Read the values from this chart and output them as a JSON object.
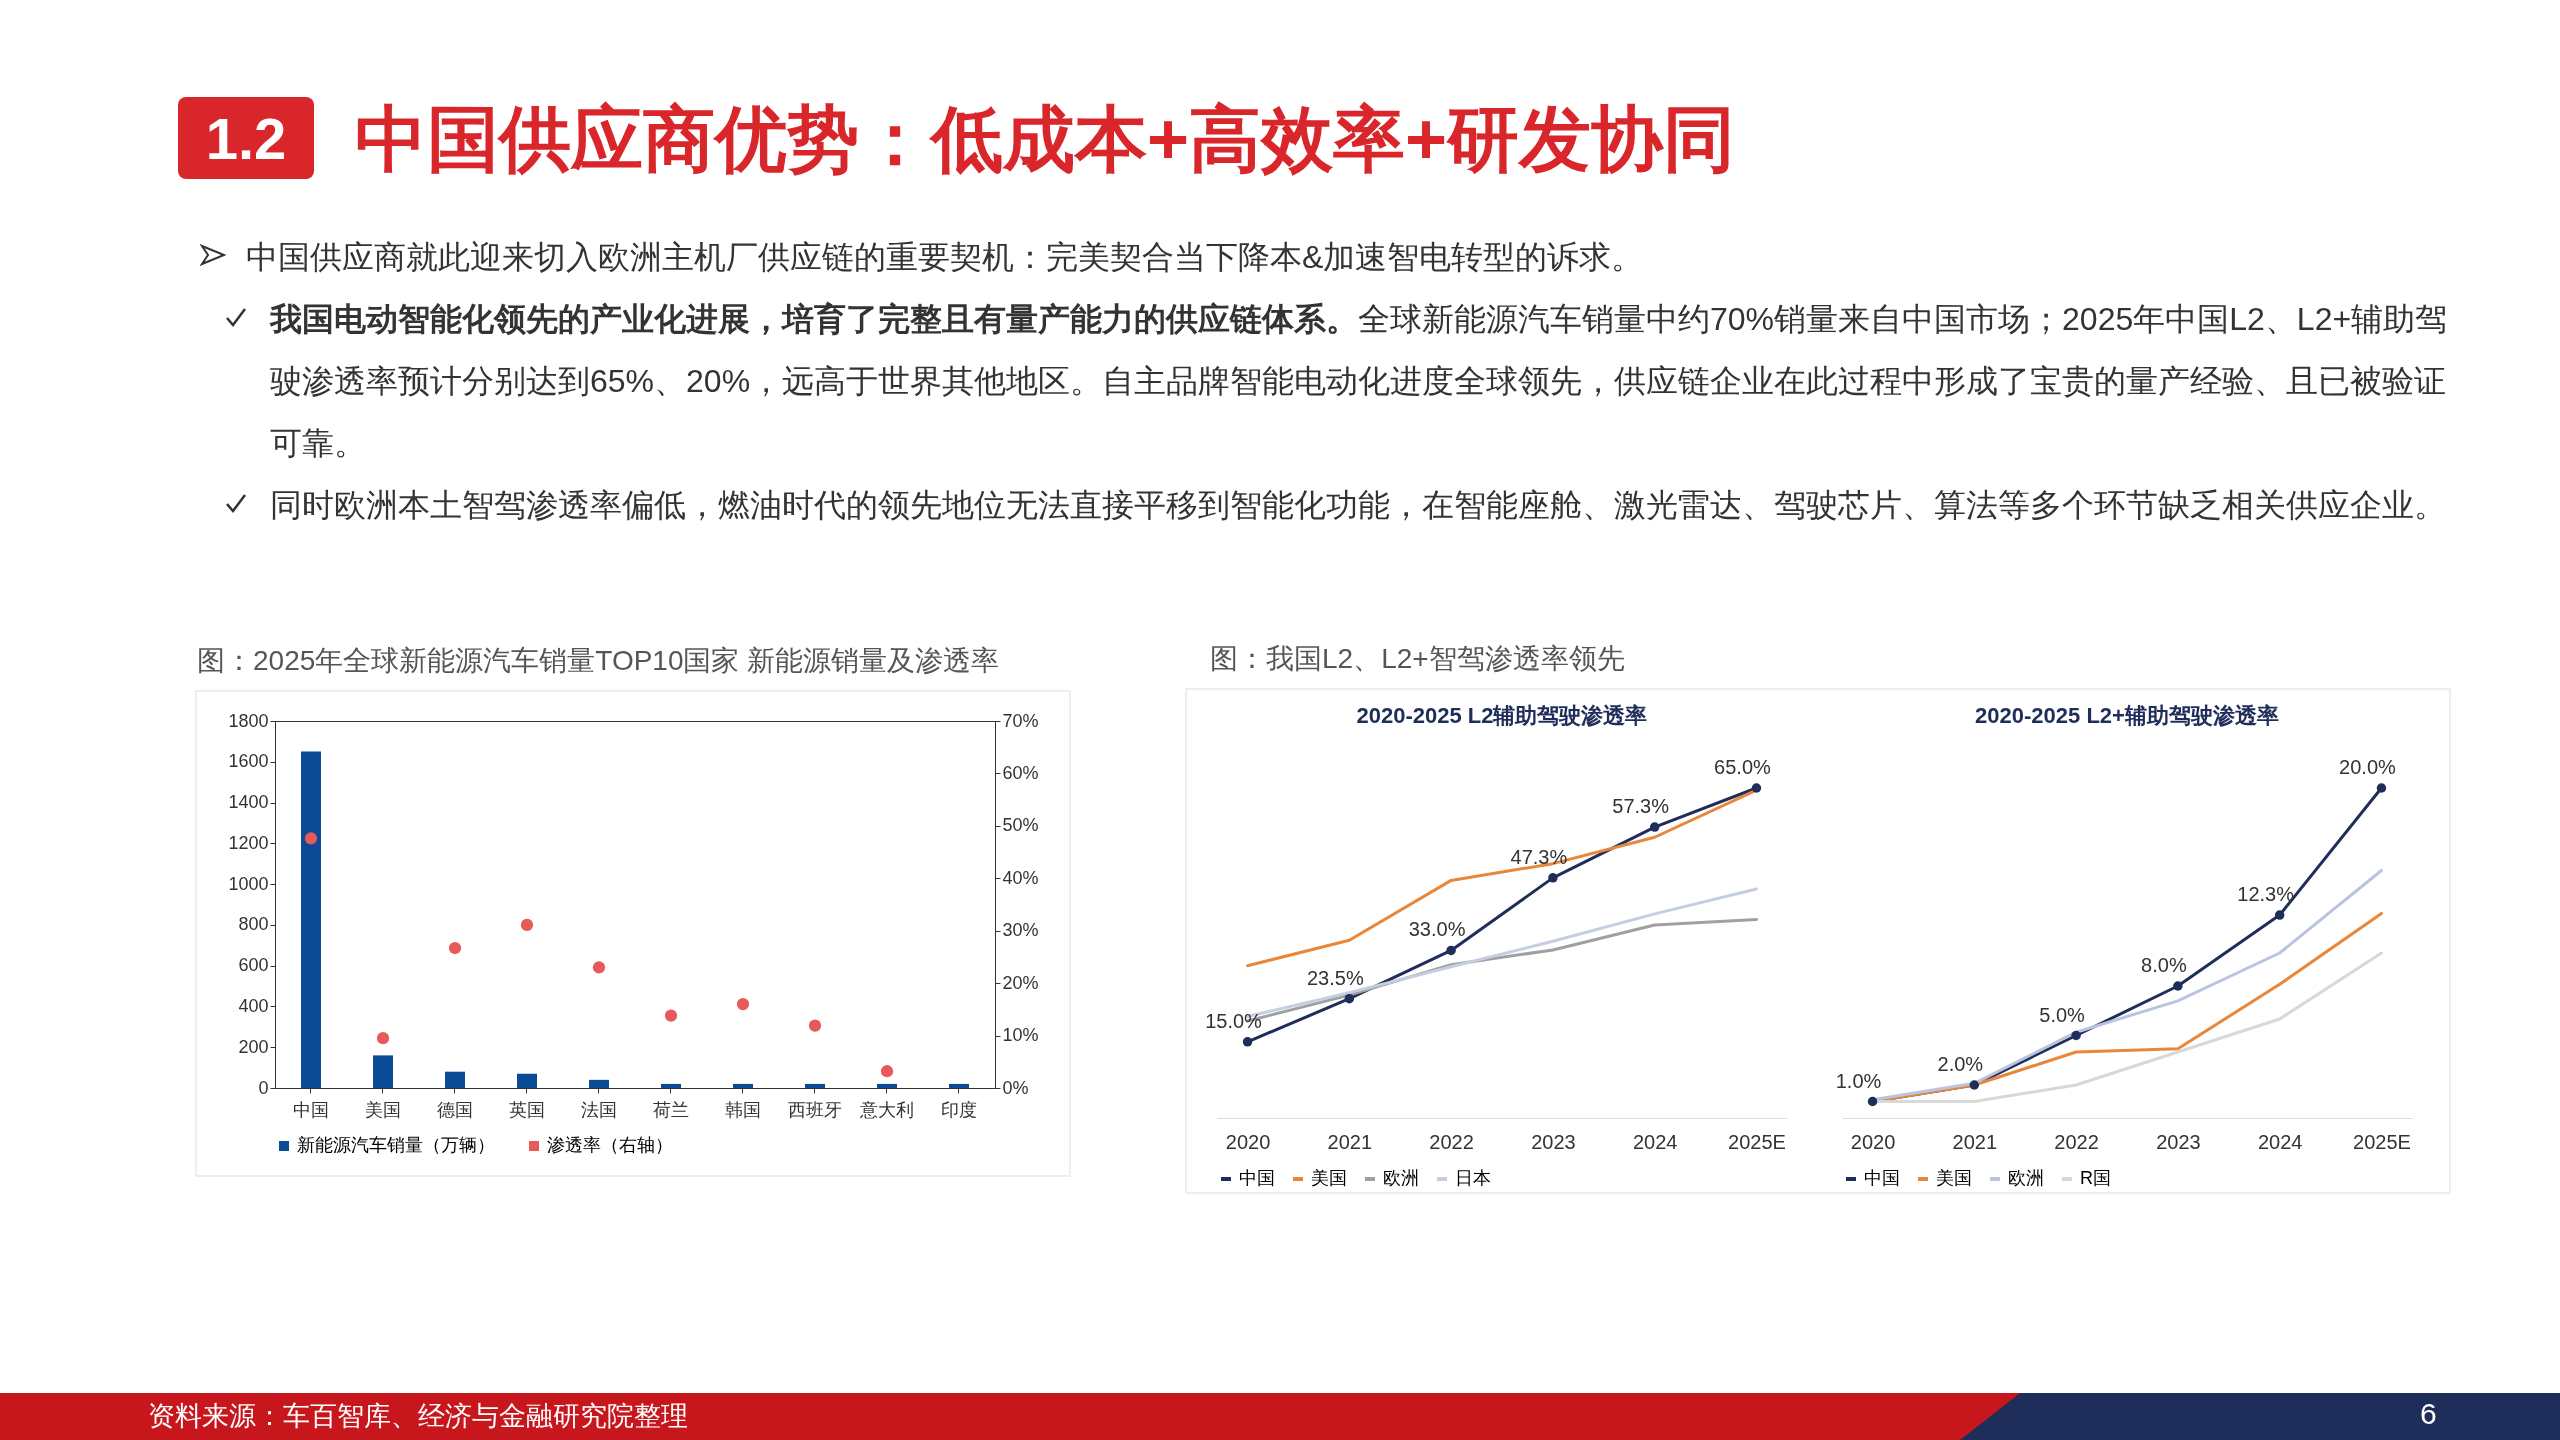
{
  "chart_data": [
    {
      "type": "other",
      "title": "中国供应商优势：低成本+高效率+研发协同",
      "annotations": [
        "1.2",
        "中国供应商就此迎来切入欧洲主机厂供应链的重要契机：完美契合当下降本&加速智电转型的诉求。",
        "我国电动智能化领先的产业化进展，培育了完整且有量产能力的供应链体系。",
        "全球新能源汽车销量中约70%销量来自中国市场；2025年中国L2、L2+辅助驾驶渗透率预计分别达到65%、20%，远高于世界其他地区。自主品牌智能电动化进度全球领先，供应链企业在此过程中形成了宝贵的量产经验、且已被验证可靠。",
        "同时欧洲本土智驾渗透率偏低，燃油时代的领先地位无法直接平移到智能化功能，在智能座舱、激光雷达、驾驶芯片、算法等多个环节缺乏相关供应企业。",
        "资料来源：车百智库、经济与金融研究院整理",
        "6"
      ]
    },
    {
      "type": "bar",
      "title": "图：2025年全球新能源汽车销量TOP10国家 新能源销量及渗透率",
      "categories": [
        "中国",
        "美国",
        "德国",
        "英国",
        "法国",
        "荷兰",
        "韩国",
        "西班牙",
        "意大利",
        "印度"
      ],
      "series": [
        {
          "name": "新能源汽车销量（万辆）",
          "color": "#0b4a94",
          "values": [
            1650,
            160,
            80,
            70,
            40,
            20,
            20,
            20,
            20,
            20
          ]
        },
        {
          "name": "渗透率（右轴）",
          "type": "scatter",
          "axis": "y2",
          "color": "#e85a5a",
          "values": [
            47.6,
            9.5,
            26.7,
            31.1,
            23.0,
            13.8,
            16.0,
            11.9,
            3.2,
            null
          ]
        }
      ],
      "ylim": [
        0,
        1800
      ],
      "yticks": [
        0,
        200,
        400,
        600,
        800,
        1000,
        1200,
        1400,
        1600,
        1800
      ],
      "y2lim": [
        0,
        70
      ],
      "y2ticks": [
        {
          "value": 0,
          "label": "0%"
        },
        {
          "value": 10,
          "label": "10%"
        },
        {
          "value": 20,
          "label": "20%"
        },
        {
          "value": 30,
          "label": "30%"
        },
        {
          "value": 40,
          "label": "40%"
        },
        {
          "value": 50,
          "label": "50%"
        },
        {
          "value": 60,
          "label": "60%"
        },
        {
          "value": 70,
          "label": "70%"
        }
      ],
      "legend": "bottom",
      "grid": false
    },
    {
      "type": "line",
      "title": "2020-2025 L2辅助驾驶渗透率",
      "annotations": [
        "图：我国L2、L2+智驾渗透率领先"
      ],
      "categories": [
        "2020",
        "2021",
        "2022",
        "2023",
        "2024",
        "2025E"
      ],
      "series": [
        {
          "name": "中国",
          "color": "#1f2d5a",
          "marker": "circle",
          "values": [
            15.0,
            23.5,
            33.0,
            47.3,
            57.3,
            65.0
          ],
          "value_labels": [
            "15.0%",
            "23.5%",
            "33.0%",
            "47.3%",
            "57.3%",
            "65.0%"
          ]
        },
        {
          "name": "美国",
          "color": "#e8873a",
          "values": [
            30.0,
            35.0,
            46.8,
            50.1,
            55.3,
            64.6
          ]
        },
        {
          "name": "欧洲",
          "color": "#a0a0a0",
          "values": [
            19.1,
            24.2,
            30.2,
            33.1,
            38.0,
            39.1
          ]
        },
        {
          "name": "日本",
          "color": "#c5cde0",
          "values": [
            20.0,
            24.7,
            29.8,
            34.8,
            40.2,
            45.1
          ]
        }
      ],
      "tick_labels": "x",
      "legend": "bottom",
      "grid": false
    },
    {
      "type": "line",
      "title": "2020-2025 L2+辅助驾驶渗透率",
      "categories": [
        "2020",
        "2021",
        "2022",
        "2023",
        "2024",
        "2025E"
      ],
      "series": [
        {
          "name": "中国",
          "color": "#1f2d5a",
          "marker": "circle",
          "values": [
            1.0,
            2.0,
            5.0,
            8.0,
            12.3,
            20.0
          ],
          "value_labels": [
            "1.0%",
            "2.0%",
            "5.0%",
            "8.0%",
            "12.3%",
            "20.0%"
          ]
        },
        {
          "name": "美国",
          "color": "#e8873a",
          "values": [
            1.0,
            2.0,
            4.0,
            4.2,
            8.1,
            12.4
          ]
        },
        {
          "name": "欧洲",
          "color": "#b8c4e0",
          "values": [
            1.1,
            2.1,
            5.2,
            7.1,
            10.0,
            15.0
          ]
        },
        {
          "name": "R国",
          "color": "#d8d8d8",
          "values": [
            1.0,
            1.0,
            2.0,
            4.0,
            6.0,
            10.0
          ]
        }
      ],
      "tick_labels": "x",
      "legend": "bottom",
      "grid": false
    }
  ]
}
